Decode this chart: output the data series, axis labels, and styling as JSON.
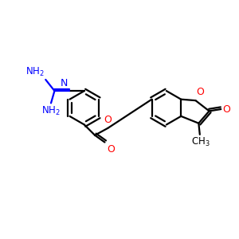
{
  "bg_color": "#ffffff",
  "black": "#000000",
  "blue": "#0000ff",
  "red": "#ff0000",
  "lw": 1.6,
  "figsize": [
    3.0,
    3.0
  ],
  "dpi": 100,
  "xlim": [
    0,
    10
  ],
  "ylim": [
    0,
    10
  ]
}
